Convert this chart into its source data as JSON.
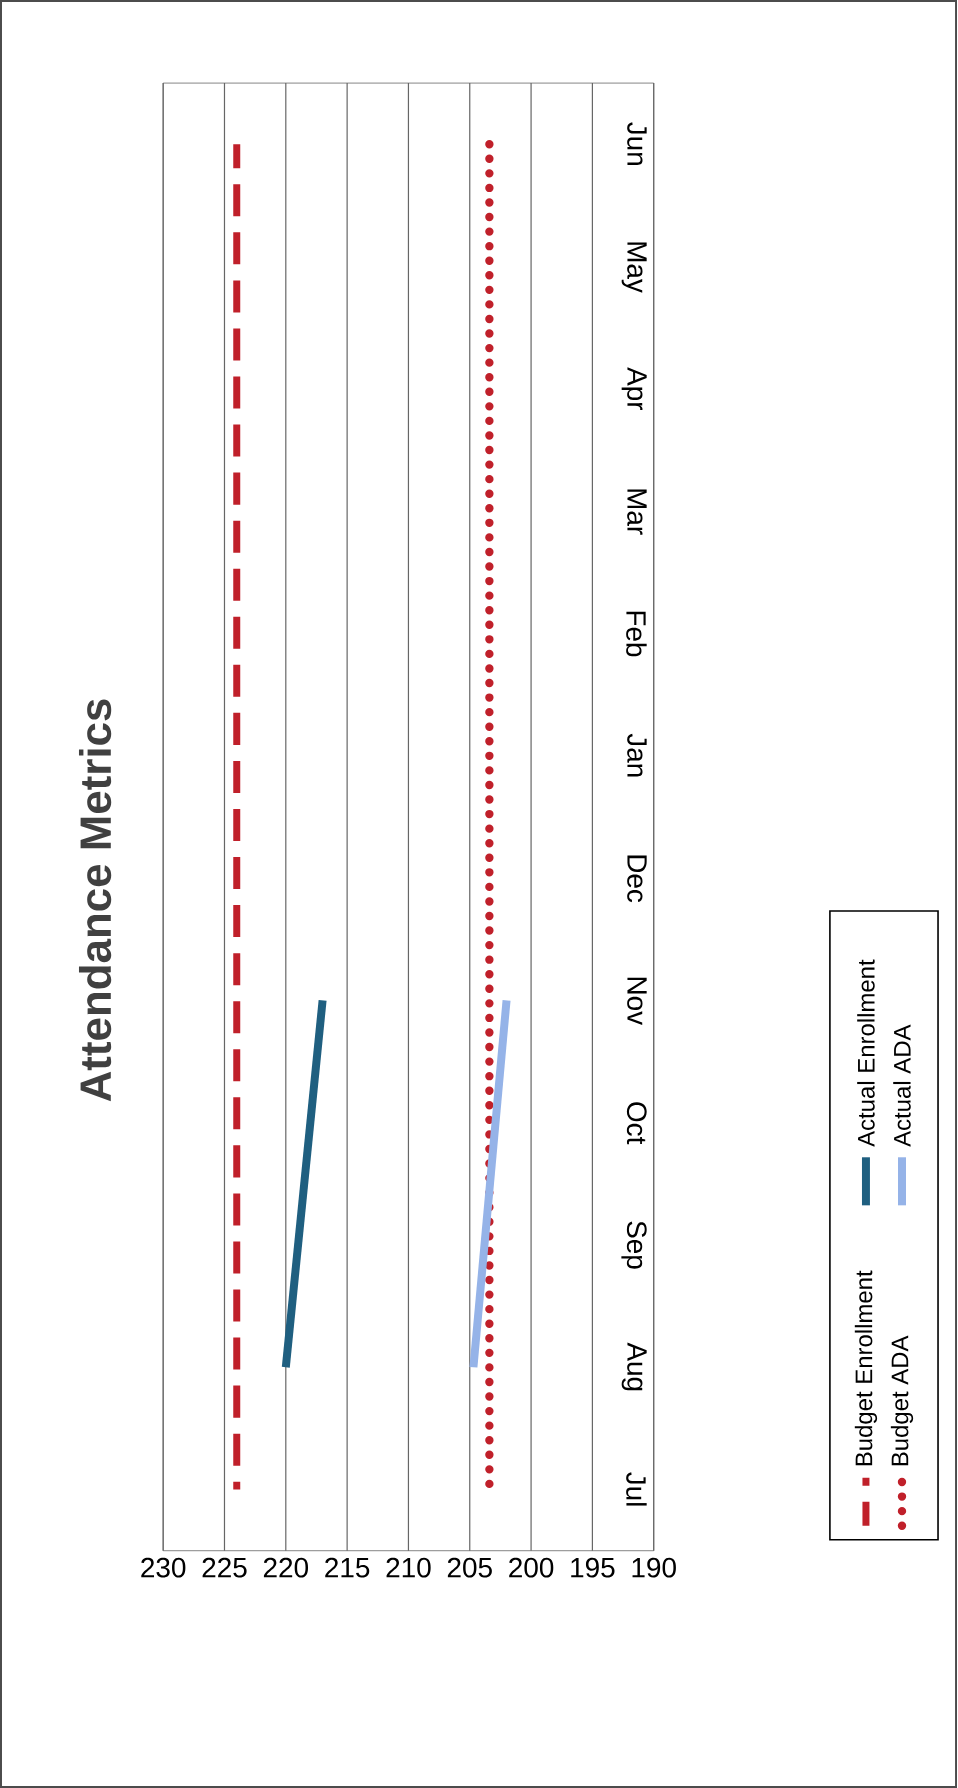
{
  "chart_data": {
    "type": "line",
    "title": "Attendance Metrics",
    "orientation": "horizontal",
    "categories": [
      "Jun",
      "May",
      "Apr",
      "Mar",
      "Feb",
      "Jan",
      "Dec",
      "Nov",
      "Oct",
      "Sep",
      "Aug",
      "Jul"
    ],
    "series": [
      {
        "name": "Budget Enrollment",
        "color": "#c0202a",
        "line_style": "dashed",
        "values": [
          224,
          224,
          224,
          224,
          224,
          224,
          224,
          224,
          224,
          224,
          224,
          224
        ]
      },
      {
        "name": "Actual Enrollment",
        "color": "#1f5f80",
        "line_style": "solid",
        "values": [
          null,
          null,
          null,
          null,
          null,
          null,
          null,
          217,
          null,
          null,
          220,
          null
        ]
      },
      {
        "name": "Budget ADA",
        "color": "#c0202a",
        "line_style": "dotted",
        "values": [
          203.4,
          203.4,
          203.4,
          203.4,
          203.4,
          203.4,
          203.4,
          203.4,
          203.4,
          203.4,
          203.4,
          203.4
        ]
      },
      {
        "name": "Actual ADA",
        "color": "#95b3e8",
        "line_style": "solid",
        "values": [
          null,
          null,
          null,
          null,
          null,
          null,
          null,
          202,
          null,
          null,
          204.7,
          null
        ]
      }
    ],
    "xlim": [
      230,
      190
    ],
    "xticks": [
      230,
      225,
      220,
      215,
      210,
      205,
      200,
      195,
      190
    ],
    "grid": "x",
    "legend": "right",
    "marker": "none"
  }
}
